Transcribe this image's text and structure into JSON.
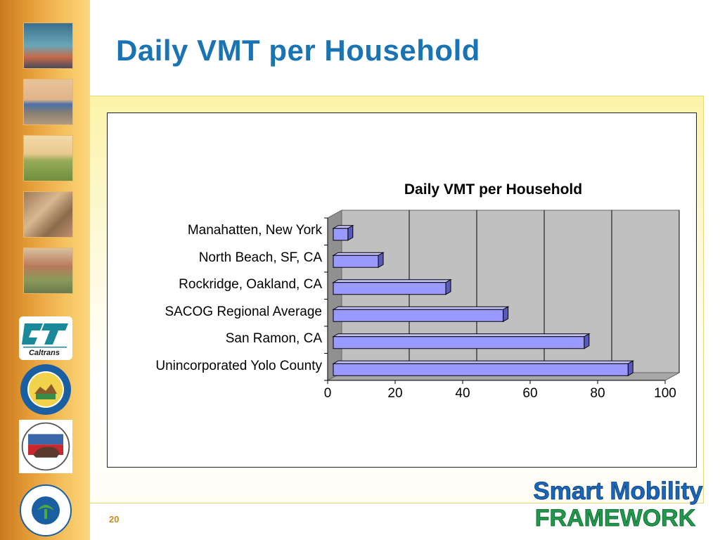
{
  "slide": {
    "title": "Daily VMT per Household",
    "page_number": "20"
  },
  "brand": {
    "line1": "Smart Mobility",
    "line2": "FRAMEWORK"
  },
  "logos": {
    "caltrans": "Caltrans"
  },
  "colors": {
    "title": "#1a73b3",
    "bar": "#9999ff",
    "plot_bg": "#c0c0c0",
    "sidebar": "#e39a35",
    "brand_blue": "#1a66b8",
    "brand_green": "#1f9a4b"
  },
  "chart_data": {
    "type": "bar",
    "orientation": "horizontal",
    "title": "Daily VMT per Household",
    "categories": [
      "Manahatten, New York",
      "North Beach, SF, CA",
      "Rockridge, Oakland, CA",
      "SACOG Regional Average",
      "San Ramon, CA",
      "Unincorporated Yolo County"
    ],
    "values": [
      6,
      15,
      35,
      52,
      76,
      89
    ],
    "xlim": [
      0,
      100
    ],
    "xticks": [
      "0",
      "20",
      "40",
      "60",
      "80",
      "100"
    ],
    "grid": true,
    "legend": false
  }
}
